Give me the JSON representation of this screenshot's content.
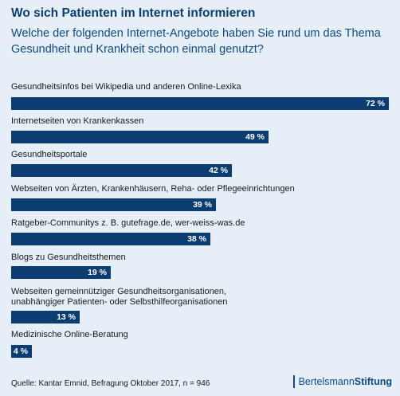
{
  "title": "Wo sich Patienten im Internet informieren",
  "subtitle": "Welche der folgenden Internet-Angebote haben Sie rund um das Thema Gesundheit und Krankheit schon einmal genutzt?",
  "source": "Quelle: Kantar Emnid, Befragung Oktober 2017, n = 946",
  "brand": {
    "part1": "Bertelsmann",
    "part2": "Stiftung"
  },
  "colors": {
    "bar": "#0c3d72",
    "background": "#e6eff8",
    "title": "#0b3d72"
  },
  "chart_data": {
    "type": "bar",
    "orientation": "horizontal",
    "categories": [
      "Gesundheitsinfos bei Wikipedia und anderen Online-Lexika",
      "Internetseiten von Krankenkassen",
      "Gesundheitsportale",
      "Webseiten von Ärzten, Krankenhäusern, Reha- oder Pflegeeinrichtungen",
      "Ratgeber-Communitys z. B. gutefrage.de, wer-weiss-was.de",
      "Blogs zu Gesundheitsthemen",
      "Webseiten gemeinnütziger Gesundheitsorganisationen, unabhängiger Patienten- oder Selbsthilfeorganisationen",
      "Medizinische Online-Beratung"
    ],
    "values": [
      72,
      49,
      42,
      39,
      38,
      19,
      13,
      4
    ],
    "value_labels": [
      "72 %",
      "49 %",
      "42 %",
      "39 %",
      "38 %",
      "19 %",
      "13 %",
      "4 %"
    ],
    "unit": "%",
    "xlim": [
      0,
      72
    ]
  }
}
